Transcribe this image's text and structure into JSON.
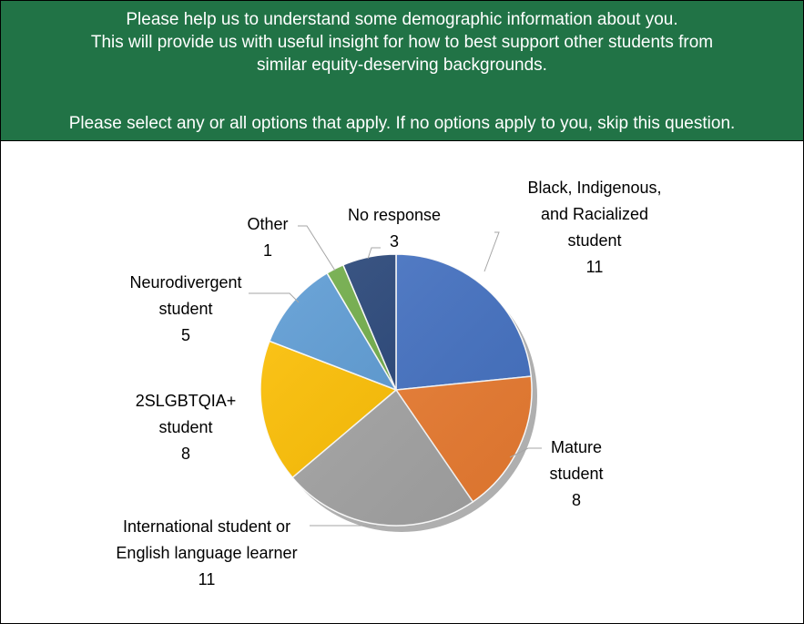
{
  "header": {
    "line1": "Please help us to understand some demographic information about you.",
    "line2": "This will provide us with useful insight for how to best support other students from",
    "line3": "similar equity-deserving backgrounds.",
    "line4": "Please select any or all options that apply. If no options apply to you, skip this question."
  },
  "chart_data": {
    "type": "pie",
    "title": "",
    "slices": [
      {
        "label": "Black, Indigenous, and Racialized student",
        "label_lines": [
          "Black, Indigenous,",
          "and Racialized",
          "student"
        ],
        "value": 11,
        "color": "#4472C4"
      },
      {
        "label": "Mature student",
        "label_lines": [
          "Mature",
          "student"
        ],
        "value": 8,
        "color": "#ED7D31"
      },
      {
        "label": "International student or English language learner",
        "label_lines": [
          "International student or",
          "English language learner"
        ],
        "value": 11,
        "color": "#A5A5A5"
      },
      {
        "label": "2SLGBTQIA+ student",
        "label_lines": [
          "2SLGBTQIA+",
          "student"
        ],
        "value": 8,
        "color": "#FFC000"
      },
      {
        "label": "Neurodivergent student",
        "label_lines": [
          "Neurodivergent",
          "student"
        ],
        "value": 5,
        "color": "#5B9BD5"
      },
      {
        "label": "Other",
        "label_lines": [
          "Other"
        ],
        "value": 1,
        "color": "#70AD47"
      },
      {
        "label": "No response",
        "label_lines": [
          "No response"
        ],
        "value": 3,
        "color": "#264478"
      }
    ]
  }
}
